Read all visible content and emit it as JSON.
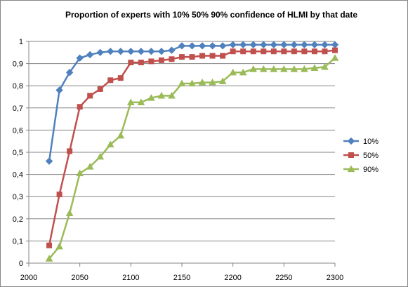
{
  "chart_data": {
    "type": "line",
    "title": "Proportion of experts with 10%  50% 90%  confidence of HLMI by that date",
    "xlabel": "",
    "ylabel": "",
    "xlim": [
      2000,
      2300
    ],
    "ylim": [
      0,
      1
    ],
    "x_ticks": [
      2000,
      2050,
      2100,
      2150,
      2200,
      2250,
      2300
    ],
    "y_ticks": [
      0,
      0.1,
      0.2,
      0.3,
      0.4,
      0.5,
      0.6,
      0.7,
      0.8,
      0.9,
      1
    ],
    "y_tick_labels": [
      "0",
      "0,1",
      "0,2",
      "0,3",
      "0,4",
      "0,5",
      "0,6",
      "0,7",
      "0,8",
      "0,9",
      "1"
    ],
    "grid": "horizontal",
    "legend_position": "right",
    "x": [
      2020,
      2030,
      2040,
      2050,
      2060,
      2070,
      2080,
      2090,
      2100,
      2110,
      2120,
      2130,
      2140,
      2150,
      2160,
      2170,
      2180,
      2190,
      2200,
      2210,
      2220,
      2230,
      2240,
      2250,
      2260,
      2270,
      2280,
      2290,
      2300
    ],
    "series": [
      {
        "name": "10%",
        "color": "#4f81bd",
        "marker": "diamond",
        "values": [
          0.46,
          0.78,
          0.86,
          0.925,
          0.94,
          0.95,
          0.955,
          0.955,
          0.955,
          0.955,
          0.955,
          0.955,
          0.96,
          0.98,
          0.98,
          0.98,
          0.98,
          0.98,
          0.985,
          0.985,
          0.985,
          0.985,
          0.985,
          0.985,
          0.985,
          0.985,
          0.985,
          0.985,
          0.985
        ]
      },
      {
        "name": "50%",
        "color": "#c0504d",
        "marker": "square",
        "values": [
          0.08,
          0.31,
          0.505,
          0.705,
          0.755,
          0.785,
          0.825,
          0.835,
          0.905,
          0.905,
          0.91,
          0.915,
          0.92,
          0.93,
          0.93,
          0.935,
          0.935,
          0.935,
          0.955,
          0.955,
          0.955,
          0.955,
          0.955,
          0.955,
          0.955,
          0.955,
          0.955,
          0.955,
          0.96
        ]
      },
      {
        "name": "90%",
        "color": "#9bbb59",
        "marker": "triangle",
        "values": [
          0.02,
          0.075,
          0.225,
          0.405,
          0.435,
          0.48,
          0.535,
          0.575,
          0.725,
          0.725,
          0.745,
          0.755,
          0.755,
          0.81,
          0.81,
          0.815,
          0.815,
          0.82,
          0.86,
          0.86,
          0.875,
          0.875,
          0.875,
          0.875,
          0.875,
          0.875,
          0.88,
          0.885,
          0.925
        ]
      }
    ]
  }
}
